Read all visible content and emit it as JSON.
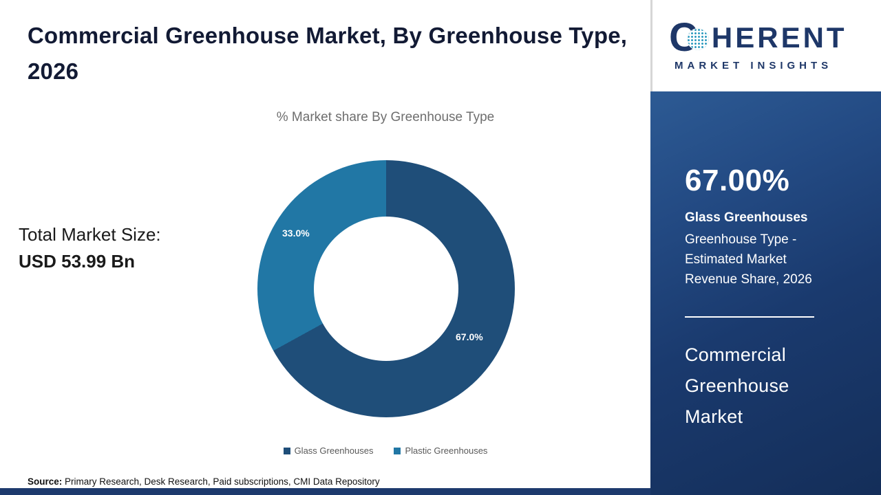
{
  "title": "Commercial Greenhouse Market, By Greenhouse Type, 2026",
  "total_market": {
    "label": "Total Market Size:",
    "value": "USD 53.99 Bn"
  },
  "chart_data": {
    "type": "pie",
    "donut": true,
    "title": "% Market share By Greenhouse Type",
    "categories": [
      "Glass Greenhouses",
      "Plastic Greenhouses"
    ],
    "values": [
      67.0,
      33.0
    ],
    "slice_labels": [
      "67.0%",
      "33.0%"
    ],
    "colors": [
      "#1f4e79",
      "#2177a5"
    ],
    "legend_position": "bottom",
    "start_angle_deg": 0
  },
  "source": {
    "label": "Source:",
    "text": " Primary Research, Desk Research, Paid subscriptions, CMI Data Repository"
  },
  "logo": {
    "letter_c": "C",
    "rest": "HERENT",
    "subtitle": "MARKET INSIGHTS"
  },
  "sidebar": {
    "stat_value": "67.00%",
    "stat_label_bold": "Glass Greenhouses",
    "stat_description_lines": {
      "0": "Greenhouse Type -",
      "1": "Estimated Market",
      "2": "Revenue Share, 2026"
    },
    "market_name_lines": {
      "0": "Commercial",
      "1": "Greenhouse",
      "2": "Market"
    },
    "panel_color": "#1d4178",
    "accent_text_color": "#ffffff"
  }
}
